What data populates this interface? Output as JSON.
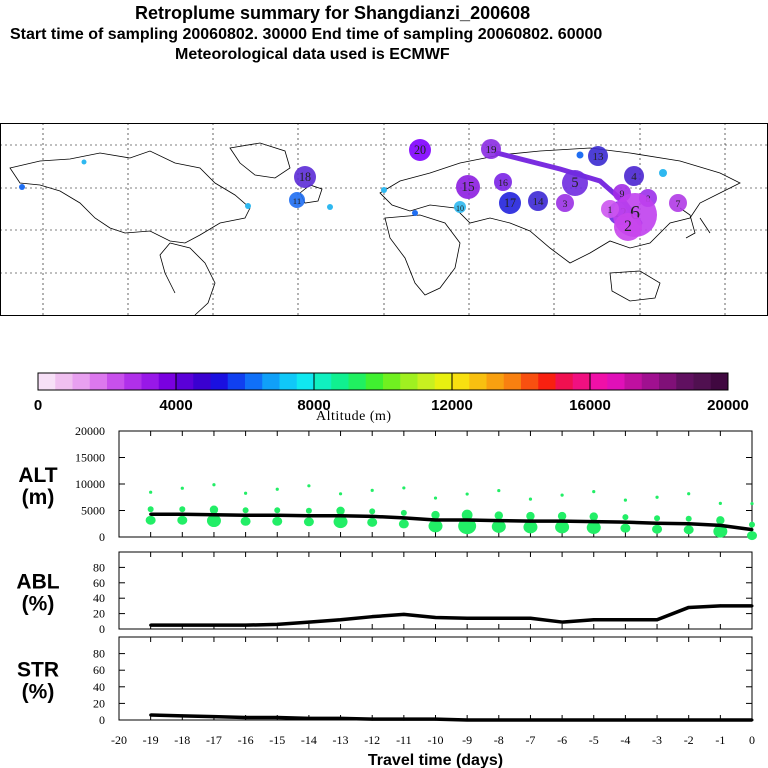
{
  "header": {
    "title": "Retroplume summary for Shangdianzi_200608",
    "line2": "Start time of sampling 20060802. 30000     End time of sampling 20060802. 60000",
    "line3": "Meteorological data used is ECMWF"
  },
  "map": {
    "clusters": [
      {
        "label": "20",
        "age_days": -20,
        "color": "#7f00ff"
      },
      {
        "label": "19",
        "age_days": -19,
        "color": "#8a2be2"
      },
      {
        "label": "18",
        "age_days": -18,
        "color": "#5b2bd6"
      },
      {
        "label": "17",
        "age_days": -17,
        "color": "#2222dd"
      },
      {
        "label": "16",
        "age_days": -16,
        "color": "#7a22e6"
      },
      {
        "label": "15",
        "age_days": -15,
        "color": "#8c1de0"
      },
      {
        "label": "14",
        "age_days": -14,
        "color": "#3c28d4"
      },
      {
        "label": "13",
        "age_days": -13,
        "color": "#3a2ad0"
      },
      {
        "label": "12",
        "age_days": -12,
        "color": "#6a2ae0"
      },
      {
        "label": "11",
        "age_days": -11,
        "color": "#1f6ef2"
      },
      {
        "label": "10",
        "age_days": -10,
        "color": "#2eb8f0"
      },
      {
        "label": "9",
        "age_days": -9,
        "color": "#a32be6"
      },
      {
        "label": "8",
        "age_days": -8,
        "color": "#9b30ea"
      },
      {
        "label": "7",
        "age_days": -7,
        "color": "#b03ae6"
      },
      {
        "label": "6",
        "age_days": -6,
        "color": "#c040ee"
      },
      {
        "label": "5",
        "age_days": -5,
        "color": "#6f2be0"
      },
      {
        "label": "4",
        "age_days": -4,
        "color": "#4a25d0"
      },
      {
        "label": "3",
        "age_days": -3,
        "color": "#9a30e4"
      },
      {
        "label": "2",
        "age_days": -2,
        "color": "#c845ec"
      },
      {
        "label": "1",
        "age_days": -1,
        "color": "#cc55f0"
      }
    ]
  },
  "colorbar": {
    "ticks": [
      "0",
      "4000",
      "8000",
      "12000",
      "16000",
      "20000"
    ],
    "title": "Altitude (m)",
    "colors": [
      "#f7e0f7",
      "#f0c0f0",
      "#e8a0f0",
      "#dc78ee",
      "#c850ec",
      "#b030ea",
      "#9818e8",
      "#7a00e0",
      "#5a00d8",
      "#3a00d0",
      "#1a10e0",
      "#1040f0",
      "#1070f8",
      "#10a0f8",
      "#10c8f8",
      "#10e8f0",
      "#10f0c0",
      "#10f090",
      "#20f060",
      "#40f030",
      "#70f020",
      "#a0f020",
      "#c8f020",
      "#e8f010",
      "#f8e010",
      "#f8c010",
      "#f8a010",
      "#f88010",
      "#f85010",
      "#f82010",
      "#f01050",
      "#f01080",
      "#f010a8",
      "#e010b8",
      "#c010a0",
      "#a01090",
      "#801078",
      "#601060",
      "#501050",
      "#400840"
    ]
  },
  "chart_data": [
    {
      "type": "line",
      "panel": "ALT",
      "title": "ALT",
      "ylabel_line1": "ALT",
      "ylabel_line2": "(m)",
      "ylim": [
        0,
        20000
      ],
      "yticks": [
        "0",
        "5000",
        "10000",
        "15000",
        "20000"
      ],
      "x": [
        -19,
        -18,
        -17,
        -16,
        -15,
        -14,
        -13,
        -12,
        -11,
        -10,
        -9,
        -8,
        -7,
        -6,
        -5,
        -4,
        -3,
        -2,
        -1,
        0
      ],
      "values": [
        4300,
        4300,
        4200,
        4100,
        4100,
        4000,
        4000,
        3900,
        3600,
        3200,
        3200,
        3100,
        3000,
        3000,
        2900,
        2800,
        2600,
        2500,
        2200,
        1400
      ],
      "spread_color": "#22ee66"
    },
    {
      "type": "line",
      "panel": "ABL",
      "ylabel_line1": "ABL",
      "ylabel_line2": "(%)",
      "ylim": [
        0,
        100
      ],
      "yticks": [
        "0",
        "20",
        "40",
        "60",
        "80"
      ],
      "x": [
        -19,
        -18,
        -17,
        -16,
        -15,
        -14,
        -13,
        -12,
        -11,
        -10,
        -9,
        -8,
        -7,
        -6,
        -5,
        -4,
        -3,
        -2,
        -1,
        0
      ],
      "values": [
        5,
        5,
        5,
        5,
        6,
        9,
        12,
        16,
        19,
        15,
        14,
        14,
        14,
        9,
        12,
        12,
        12,
        28,
        30,
        30
      ]
    },
    {
      "type": "line",
      "panel": "STR",
      "ylabel_line1": "STR",
      "ylabel_line2": "(%)",
      "ylim": [
        0,
        100
      ],
      "yticks": [
        "0",
        "20",
        "40",
        "60",
        "80"
      ],
      "x": [
        -19,
        -18,
        -17,
        -16,
        -15,
        -14,
        -13,
        -12,
        -11,
        -10,
        -9,
        -8,
        -7,
        -6,
        -5,
        -4,
        -3,
        -2,
        -1,
        0
      ],
      "values": [
        6,
        5,
        4,
        3,
        3,
        2,
        2,
        1,
        1,
        1,
        0,
        0,
        0,
        0,
        0,
        0,
        0,
        0,
        0,
        0
      ],
      "xlabel": "Travel time (days)",
      "xticks": [
        "-20",
        "-19",
        "-18",
        "-17",
        "-16",
        "-15",
        "-14",
        "-13",
        "-12",
        "-11",
        "-10",
        "-9",
        "-8",
        "-7",
        "-6",
        "-5",
        "-4",
        "-3",
        "-2",
        "-1",
        "0"
      ]
    }
  ]
}
